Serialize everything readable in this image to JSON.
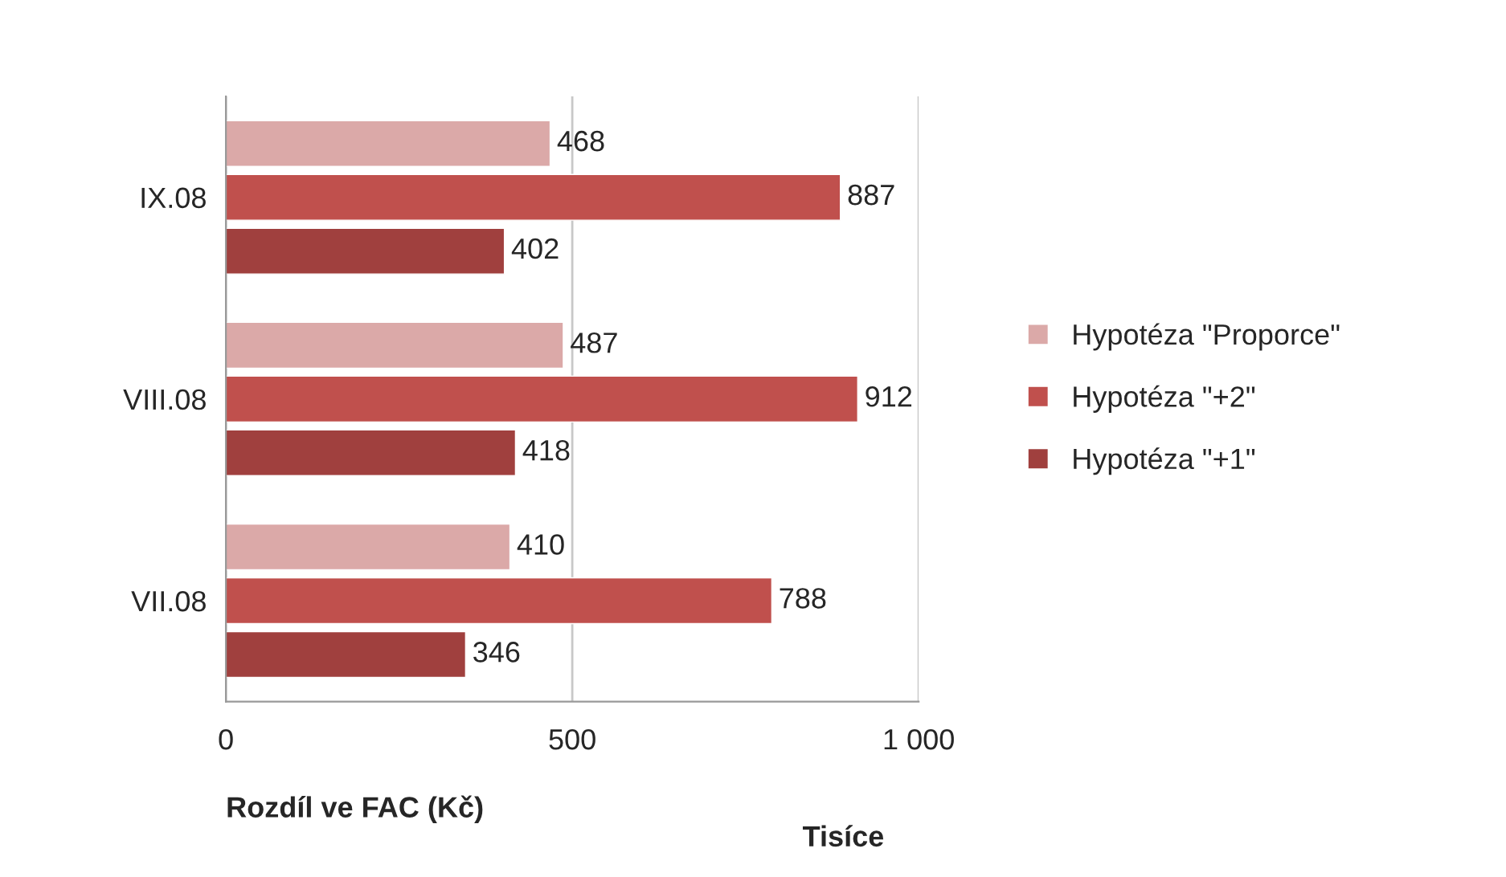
{
  "chart_data": {
    "type": "bar",
    "orientation": "horizontal",
    "xlabel": "Rozdíl ve FAC (Kč)",
    "annotations": [
      "Tisíce"
    ],
    "categories": [
      "IX.08",
      "VIII.08",
      "VII.08"
    ],
    "series": [
      {
        "name": "Hypotéza \"Proporce\"",
        "color": "#dba9a8",
        "values": [
          468,
          487,
          410
        ]
      },
      {
        "name": "Hypotéza \"+2\"",
        "color": "#c0504d",
        "values": [
          887,
          912,
          788
        ]
      },
      {
        "name": "Hypotéza \"+1\"",
        "color": "#a0403e",
        "values": [
          402,
          418,
          346
        ]
      }
    ],
    "xlim": [
      0,
      1000
    ],
    "xticks": [
      0,
      500,
      {
        "value": 1000,
        "label": "1 000"
      }
    ],
    "grid": "x",
    "legend": "right",
    "data_labels": true
  }
}
